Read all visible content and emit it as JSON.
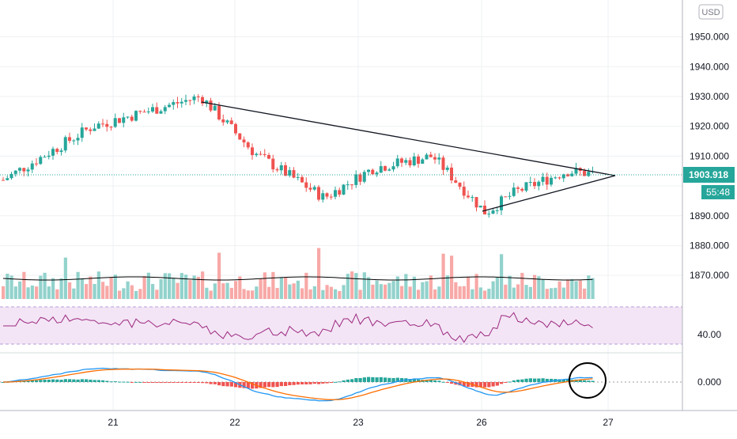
{
  "currency_badge": "USD",
  "price_axis_labels": [
    "1950.000",
    "1940.000",
    "1930.000",
    "1920.000",
    "1910.000",
    "1890.000",
    "1880.000",
    "1870.000"
  ],
  "last_price": "1903.918",
  "countdown": "55:48",
  "rsi_level_label": "40.00",
  "macd_zero_label": "0.000",
  "time_labels": [
    "21",
    "22",
    "23",
    "26",
    "27"
  ],
  "colors": {
    "up": "#26a69a",
    "down": "#ef5350",
    "up_vol": "#92d2cc",
    "down_vol": "#f7a9a7",
    "rsi_line": "#9c2780",
    "rsi_band": "#f3e5f5",
    "macd_line": "#2196f3",
    "signal_line": "#ff6d00",
    "last_price_bg": "#26a69a"
  },
  "chart_data": [
    {
      "type": "candlestick",
      "xlabel": "",
      "ylabel": "",
      "x": [
        "20",
        "21",
        "22",
        "23",
        "26",
        "27"
      ],
      "ylim": [
        1886.5,
        1961
      ],
      "grid": true,
      "last_price": 1903.918,
      "annotations": [
        "descending trendline",
        "ascending trendline (symmetrical triangle)"
      ],
      "values": {
        "start": 1902,
        "key_points": [
          {
            "x": "20",
            "price": 1902
          },
          {
            "x": "21",
            "price": 1920
          },
          {
            "x": "21",
            "price": 1930
          },
          {
            "x": "22",
            "price": 1911
          },
          {
            "x": "22",
            "price": 1896
          },
          {
            "x": "23",
            "price": 1906
          },
          {
            "x": "23",
            "price": 1910
          },
          {
            "x": "26",
            "price": 1891
          },
          {
            "x": "26",
            "price": 1898
          },
          {
            "x": "26",
            "price": 1905
          },
          {
            "x": "27",
            "price": 1903.918
          }
        ]
      }
    },
    {
      "type": "bar",
      "name": "Volume"
    },
    {
      "type": "line",
      "name": "RSI",
      "levels": [
        40
      ]
    },
    {
      "type": "line",
      "name": "MACD",
      "levels": [
        0
      ],
      "annotations": [
        "circle around latest MACD crossover"
      ]
    }
  ]
}
